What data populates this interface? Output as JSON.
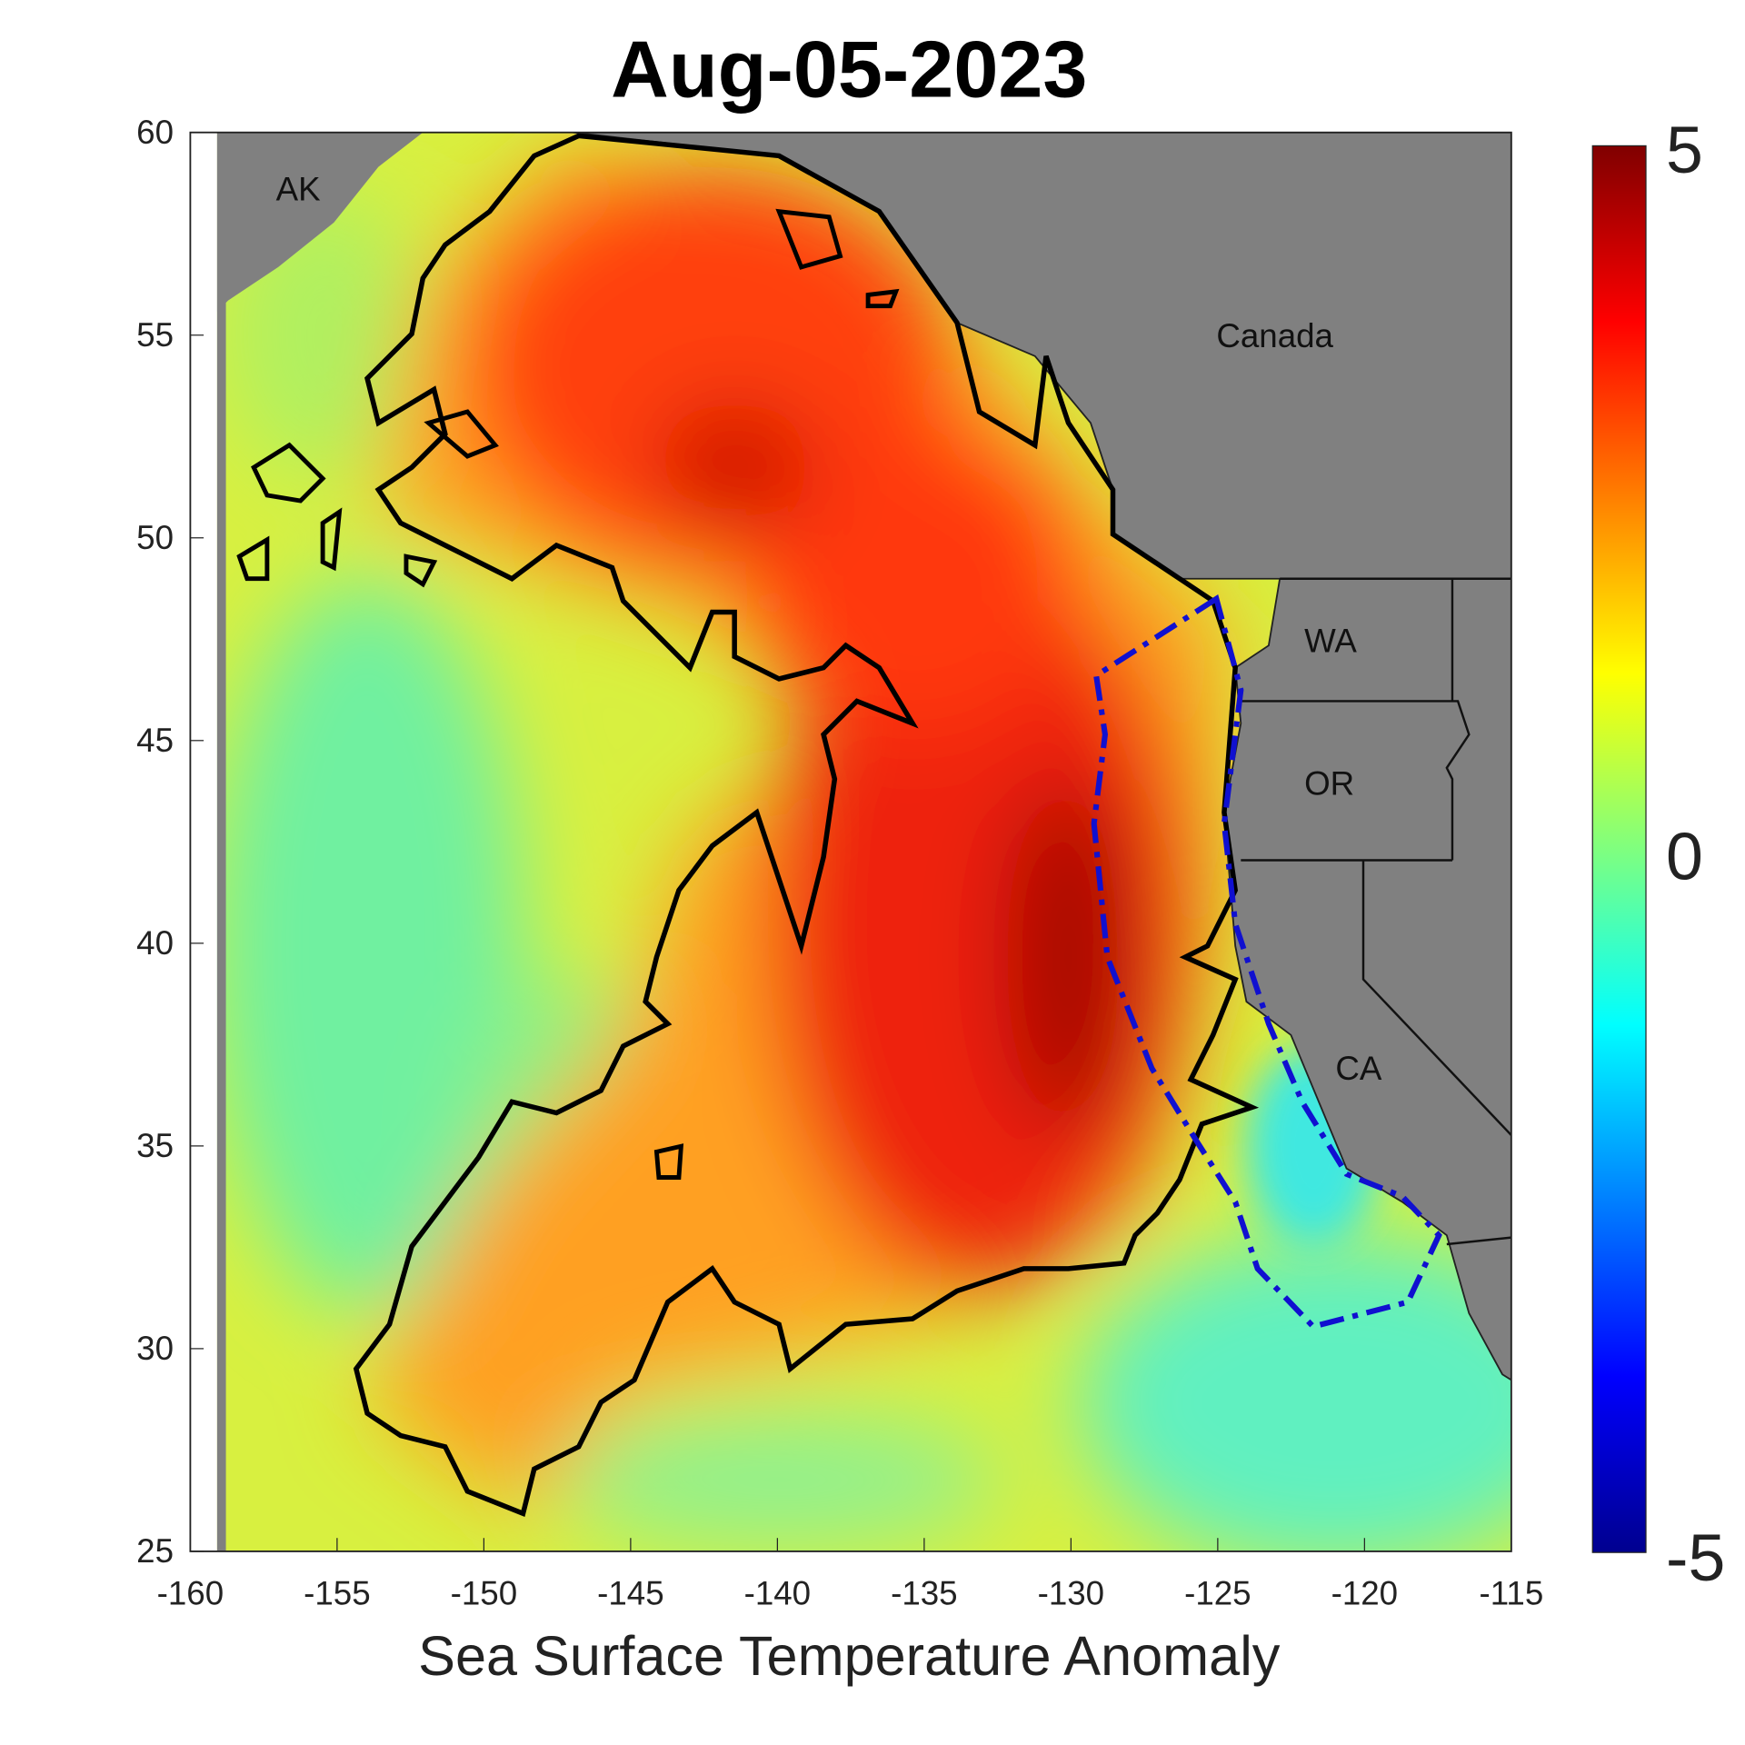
{
  "title": "Aug-05-2023",
  "xlabel": "Sea Surface Temperature Anomaly",
  "map": {
    "type": "heatmap",
    "variable": "Sea Surface Temperature Anomaly",
    "lon_range": [
      -160,
      -115
    ],
    "lat_range": [
      25,
      60
    ],
    "xticks": [
      "-160",
      "-155",
      "-150",
      "-145",
      "-140",
      "-135",
      "-130",
      "-125",
      "-120",
      "-115"
    ],
    "yticks": [
      "60",
      "55",
      "50",
      "45",
      "40",
      "35",
      "30",
      "25"
    ],
    "colorbar": {
      "min": -5,
      "max": 5,
      "ticks": [
        "5",
        "0",
        "-5"
      ],
      "colormap": "jet"
    },
    "region_labels": [
      "AK",
      "Canada",
      "WA",
      "OR",
      "CA"
    ],
    "overlays": [
      "black heatwave contour",
      "blue dash-dot coastal region outline"
    ]
  },
  "colors": {
    "land": "#808080",
    "contour": "#000000",
    "region_outline": "#1010d0",
    "warm": "#e81808",
    "neutral": "#d8f040",
    "cool": "#60f0c0"
  }
}
